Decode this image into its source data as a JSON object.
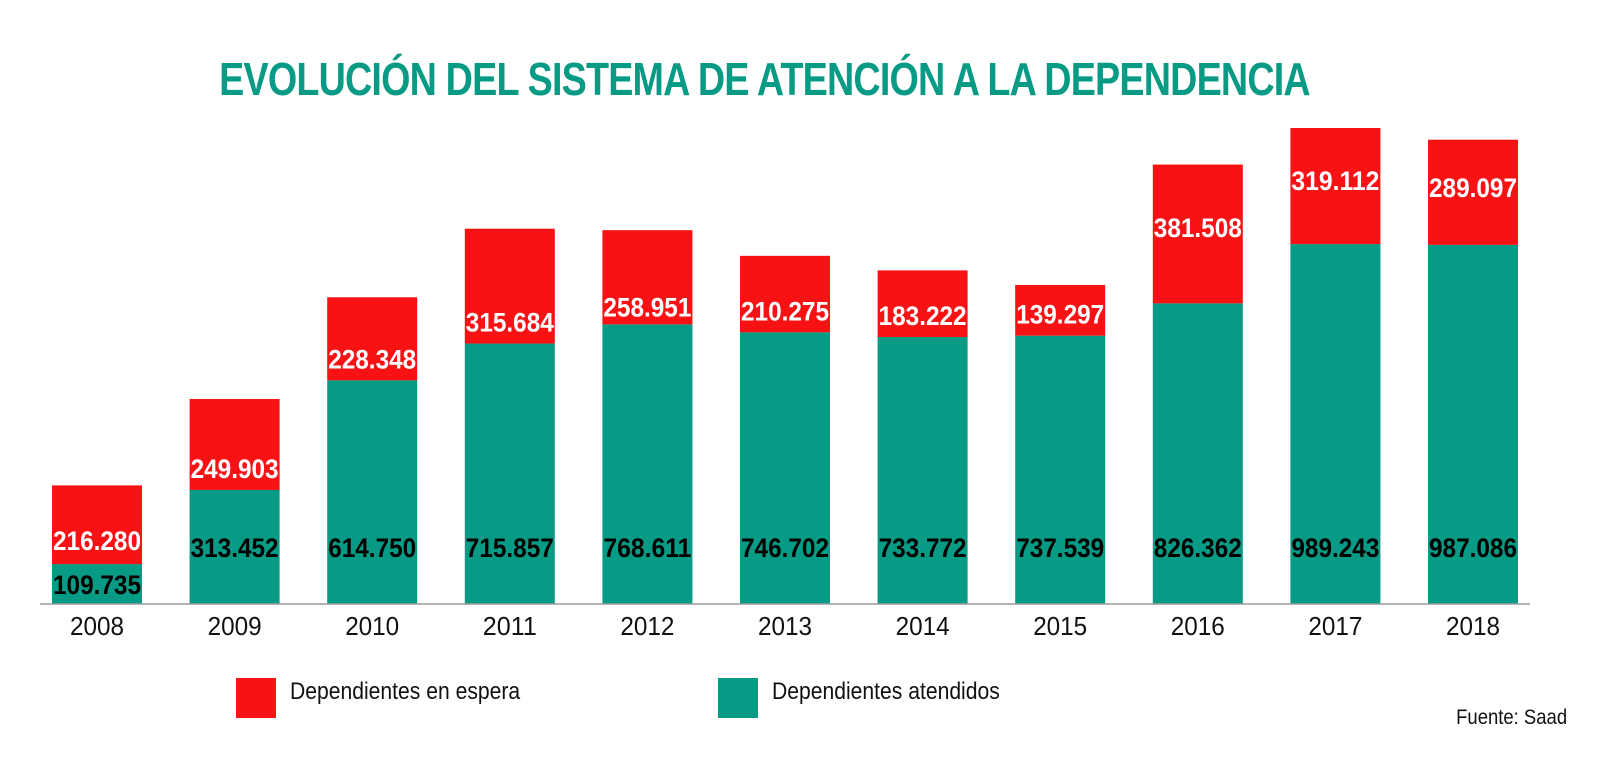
{
  "chart_data": {
    "type": "bar",
    "stacked": true,
    "title": "EVOLUCIÓN DEL SISTEMA DE ATENCIÓN A LA DEPENDENCIA",
    "xlabel": "",
    "ylabel": "",
    "categories": [
      "2008",
      "2009",
      "2010",
      "2011",
      "2012",
      "2013",
      "2014",
      "2015",
      "2016",
      "2017",
      "2018"
    ],
    "series": [
      {
        "name": "Dependientes atendidos",
        "color": "#079a84",
        "label_color": "#000000",
        "values": [
          109735,
          313452,
          614750,
          715857,
          768611,
          746702,
          733772,
          737539,
          826362,
          989243,
          987086
        ],
        "labels": [
          "109.735",
          "313.452",
          "614.750",
          "715.857",
          "768.611",
          "746.702",
          "733.772",
          "737.539",
          "826.362",
          "989.243",
          "987.086"
        ]
      },
      {
        "name": "Dependientes en espera",
        "color": "#f81214",
        "label_color": "#ffffff",
        "values": [
          216280,
          249903,
          228348,
          315684,
          258951,
          210275,
          183222,
          139297,
          381508,
          319112,
          289097
        ],
        "labels": [
          "216.280",
          "249.903",
          "228.348",
          "315.684",
          "258.951",
          "210.275",
          "183.222",
          "139.297",
          "381.508",
          "319.112",
          "289.097"
        ]
      }
    ],
    "ylim": [
      0,
      1308355
    ],
    "grid": false,
    "legend_position": "bottom-left",
    "legend": [
      {
        "label": "Dependientes en espera",
        "color": "#f81214"
      },
      {
        "label": "Dependientes atendidos",
        "color": "#079a84"
      }
    ],
    "source": "Fuente: Saad"
  }
}
